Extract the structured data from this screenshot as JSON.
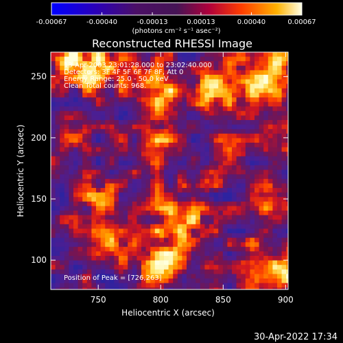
{
  "colorbar": {
    "tick_labels": [
      "-0.00067",
      "-0.00040",
      "-0.00013",
      "0.00013",
      "0.00040",
      "0.00067"
    ],
    "unit_label": "(photons cm⁻² s⁻¹ asec⁻²)"
  },
  "plot": {
    "title": "Reconstructed RHESSI Image",
    "info_lines": [
      "13-Apr-2003 23:01:28.000 to 23:02:40.000",
      "Detectors: 3F 4F 5F 6F 7F 8F, Att 0",
      "Energy Range: 25.0 - 50.0 keV",
      "Clean    Total counts: 968."
    ],
    "peak_label": "Position of Peak = [726,263]",
    "footer_timestamp": "30-Apr-2022 17:34"
  },
  "chart_data": {
    "type": "heatmap",
    "title": "Reconstructed RHESSI Image",
    "xlabel": "Heliocentric X (arcsec)",
    "ylabel": "Heliocentric Y (arcsec)",
    "xlim": [
      712,
      902
    ],
    "ylim": [
      76,
      270
    ],
    "x_ticks": [
      750,
      800,
      850,
      900
    ],
    "y_ticks": [
      100,
      150,
      200,
      250
    ],
    "color_scale": {
      "min": -0.00067,
      "max": 0.00067,
      "ticks": [
        -0.00067,
        -0.0004,
        -0.00013,
        0.00013,
        0.0004,
        0.00067
      ]
    },
    "peak_position": [
      726,
      263
    ]
  }
}
